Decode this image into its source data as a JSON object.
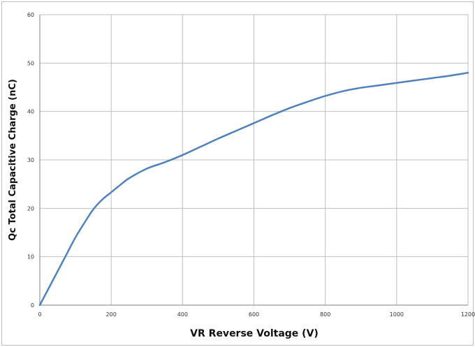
{
  "chart_data": {
    "type": "line",
    "title": "",
    "xlabel": "VR Reverse Voltage (V)",
    "ylabel": "Qc Total Capacitive Charge (nC)",
    "xlim": [
      0,
      1200
    ],
    "ylim": [
      0,
      60
    ],
    "xticks": [
      0,
      200,
      400,
      600,
      800,
      1000,
      1200
    ],
    "yticks": [
      0,
      10,
      20,
      30,
      40,
      50,
      60
    ],
    "grid": true,
    "legend": "none",
    "colors": {
      "line": "#4f81bd",
      "grid": "#bfbfbf",
      "axis": "#808080"
    },
    "series": [
      {
        "x": [
          0,
          25,
          50,
          75,
          100,
          125,
          150,
          175,
          200,
          225,
          250,
          300,
          350,
          400,
          450,
          500,
          550,
          600,
          650,
          700,
          750,
          800,
          850,
          900,
          950,
          1000,
          1050,
          1100,
          1150,
          1200
        ],
        "y": [
          0,
          3.5,
          7,
          10.5,
          14,
          17,
          19.8,
          21.8,
          23.3,
          24.8,
          26.2,
          28.2,
          29.5,
          31,
          32.7,
          34.4,
          36,
          37.6,
          39.2,
          40.7,
          42,
          43.2,
          44.2,
          44.9,
          45.4,
          45.9,
          46.4,
          46.9,
          47.4,
          48
        ]
      }
    ]
  }
}
